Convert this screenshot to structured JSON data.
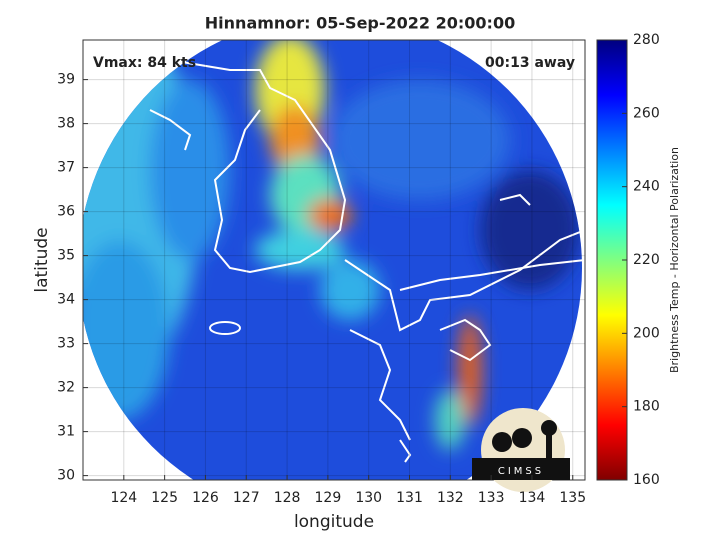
{
  "chart_data": {
    "type": "map",
    "title": "Hinnamnor: 05-Sep-2022 20:00:00",
    "annotations": [
      "Vmax: 84 kts",
      "00:13 away"
    ],
    "x_label": "longitude",
    "y_label": "latitude",
    "xlim": [
      123,
      135.3
    ],
    "ylim": [
      29.9,
      39.9
    ],
    "xticks": [
      124,
      125,
      126,
      127,
      128,
      129,
      130,
      131,
      132,
      133,
      134,
      135
    ],
    "yticks": [
      30,
      31,
      32,
      33,
      34,
      35,
      36,
      37,
      38,
      39
    ],
    "grid": true,
    "colorbar": {
      "label": "Brightness Temp - Horizontal Polarization",
      "lim": [
        160,
        280
      ],
      "ticks": [
        160,
        180,
        200,
        220,
        240,
        260,
        280
      ],
      "colors": [
        "#800000",
        "#ff0000",
        "#ff8000",
        "#ffff00",
        "#80ff80",
        "#00ffff",
        "#0080ff",
        "#0000ff",
        "#000080"
      ]
    },
    "logo": "CIMSS"
  }
}
